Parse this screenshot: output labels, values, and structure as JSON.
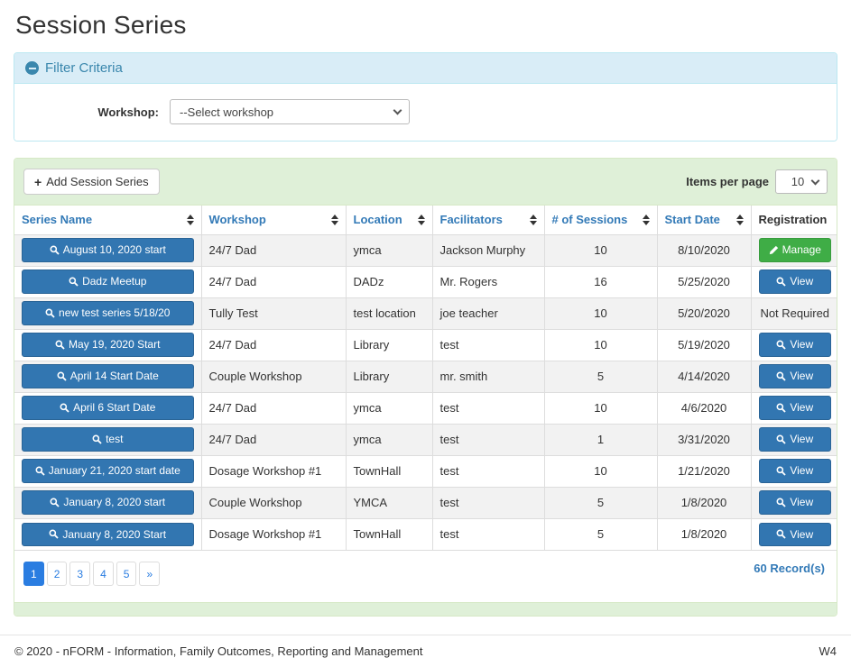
{
  "page": {
    "title": "Session Series"
  },
  "filter": {
    "title": "Filter Criteria",
    "collapse_icon": "minus-circle-icon",
    "workshop_label": "Workshop:",
    "workshop_selected": "--Select workshop"
  },
  "toolbar": {
    "add_button_label": "Add Session Series",
    "add_button_icon": "plus-icon",
    "items_per_page_label": "Items per page",
    "items_per_page_value": "10"
  },
  "table": {
    "columns": [
      {
        "label": "Series Name",
        "sortable": true
      },
      {
        "label": "Workshop",
        "sortable": true
      },
      {
        "label": "Location",
        "sortable": true
      },
      {
        "label": "Facilitators",
        "sortable": true
      },
      {
        "label": "# of Sessions",
        "sortable": true
      },
      {
        "label": "Start Date",
        "sortable": true
      },
      {
        "label": "Registration",
        "sortable": false
      }
    ],
    "rows": [
      {
        "series_name": "August 10, 2020 start",
        "workshop": "24/7 Dad",
        "location": "ymca",
        "facilitators": "Jackson Murphy",
        "sessions": "10",
        "start_date": "8/10/2020",
        "registration": {
          "type": "manage",
          "label": "Manage",
          "icon": "pencil-icon"
        }
      },
      {
        "series_name": "Dadz Meetup",
        "workshop": "24/7 Dad",
        "location": "DADz",
        "facilitators": "Mr. Rogers",
        "sessions": "16",
        "start_date": "5/25/2020",
        "registration": {
          "type": "view",
          "label": "View",
          "icon": "search-icon"
        }
      },
      {
        "series_name": "new test series 5/18/20",
        "workshop": "Tully Test",
        "location": "test location",
        "facilitators": "joe teacher",
        "sessions": "10",
        "start_date": "5/20/2020",
        "registration": {
          "type": "text",
          "label": "Not Required"
        }
      },
      {
        "series_name": "May 19, 2020 Start",
        "workshop": "24/7 Dad",
        "location": "Library",
        "facilitators": "test",
        "sessions": "10",
        "start_date": "5/19/2020",
        "registration": {
          "type": "view",
          "label": "View",
          "icon": "search-icon"
        }
      },
      {
        "series_name": "April 14 Start Date",
        "workshop": "Couple Workshop",
        "location": "Library",
        "facilitators": "mr. smith",
        "sessions": "5",
        "start_date": "4/14/2020",
        "registration": {
          "type": "view",
          "label": "View",
          "icon": "search-icon"
        }
      },
      {
        "series_name": "April 6 Start Date",
        "workshop": "24/7 Dad",
        "location": "ymca",
        "facilitators": "test",
        "sessions": "10",
        "start_date": "4/6/2020",
        "registration": {
          "type": "view",
          "label": "View",
          "icon": "search-icon"
        }
      },
      {
        "series_name": "test",
        "workshop": "24/7 Dad",
        "location": "ymca",
        "facilitators": "test",
        "sessions": "1",
        "start_date": "3/31/2020",
        "registration": {
          "type": "view",
          "label": "View",
          "icon": "search-icon"
        }
      },
      {
        "series_name": "January 21, 2020 start date",
        "workshop": "Dosage Workshop #1",
        "location": "TownHall",
        "facilitators": "test",
        "sessions": "10",
        "start_date": "1/21/2020",
        "registration": {
          "type": "view",
          "label": "View",
          "icon": "search-icon"
        }
      },
      {
        "series_name": "January 8, 2020 start",
        "workshop": "Couple Workshop",
        "location": "YMCA",
        "facilitators": "test",
        "sessions": "5",
        "start_date": "1/8/2020",
        "registration": {
          "type": "view",
          "label": "View",
          "icon": "search-icon"
        }
      },
      {
        "series_name": "January 8, 2020 Start",
        "workshop": "Dosage Workshop #1",
        "location": "TownHall",
        "facilitators": "test",
        "sessions": "5",
        "start_date": "1/8/2020",
        "registration": {
          "type": "view",
          "label": "View",
          "icon": "search-icon"
        }
      }
    ]
  },
  "pagination": {
    "pages": [
      "1",
      "2",
      "3",
      "4",
      "5",
      "»"
    ],
    "active": "1",
    "records_label": "60 Record(s)"
  },
  "footer": {
    "copyright": "© 2020 - nFORM - Information, Family Outcomes, Reporting and Management",
    "version": "W4"
  },
  "colors": {
    "primary_button_blue": "#3276b1",
    "success_button_green": "#3fad46",
    "filter_header_bg": "#d9edf7",
    "filter_header_text": "#3a87ad",
    "panel_green_bg": "#dff0d8",
    "panel_green_border": "#d6e9c6",
    "header_link_blue": "#337ab7",
    "pagination_active_blue": "#2a7de1",
    "row_stripe_gray": "#f2f2f2"
  }
}
